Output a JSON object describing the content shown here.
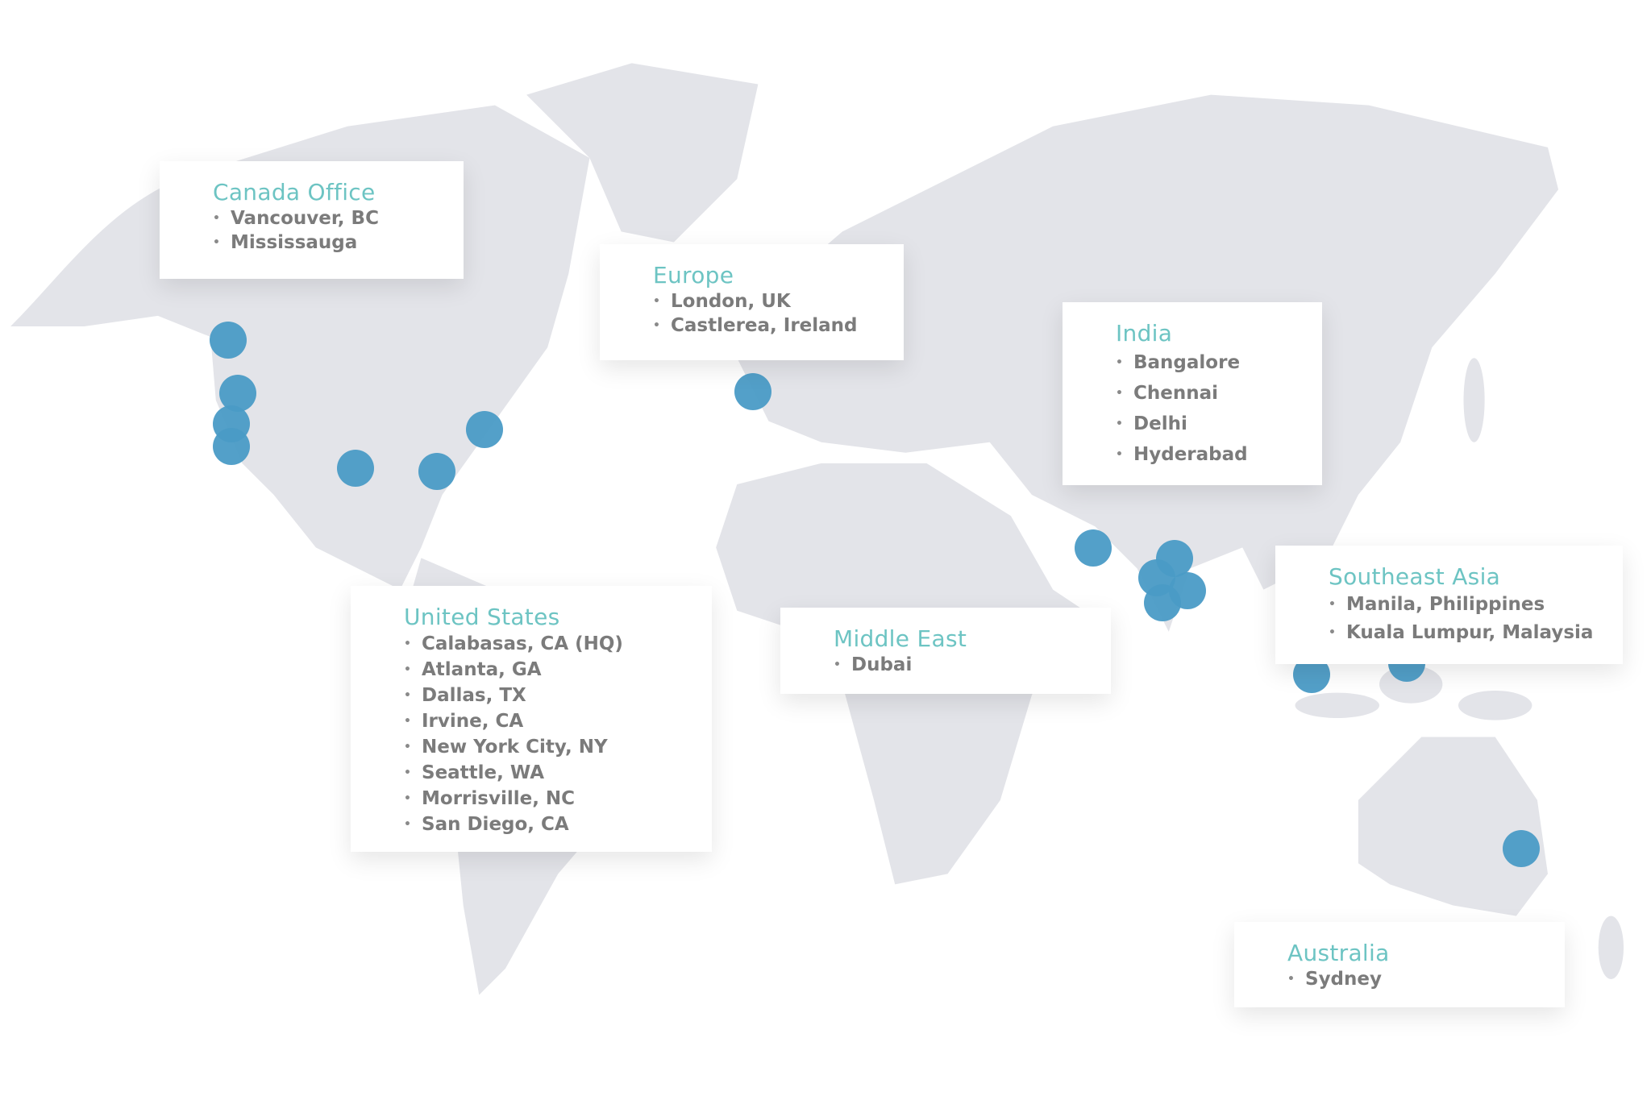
{
  "colors": {
    "land": "#e3e4e9",
    "marker": "#4a9bc6",
    "title": "#6dc4c3",
    "text": "#7b7b7b"
  },
  "regions": [
    {
      "id": "canada",
      "title": "Canada Office",
      "items": [
        "Vancouver, BC",
        "Mississauga"
      ]
    },
    {
      "id": "europe",
      "title": "Europe",
      "items": [
        "London, UK",
        "Castlerea, Ireland"
      ]
    },
    {
      "id": "india",
      "title": "India",
      "items": [
        "Bangalore",
        "Chennai",
        "Delhi",
        "Hyderabad"
      ]
    },
    {
      "id": "us",
      "title": "United States",
      "items": [
        "Calabasas, CA (HQ)",
        "Atlanta, GA",
        "Dallas, TX",
        "Irvine, CA",
        "New York City, NY",
        "Seattle, WA",
        "Morrisville, NC",
        "San Diego, CA"
      ]
    },
    {
      "id": "middle-east",
      "title": "Middle East",
      "items": [
        "Dubai"
      ]
    },
    {
      "id": "southeast-asia",
      "title": "Southeast Asia",
      "items": [
        "Manila, Philippines",
        "Kuala Lumpur, Malaysia"
      ]
    },
    {
      "id": "australia",
      "title": "Australia",
      "items": [
        "Sydney"
      ]
    }
  ]
}
